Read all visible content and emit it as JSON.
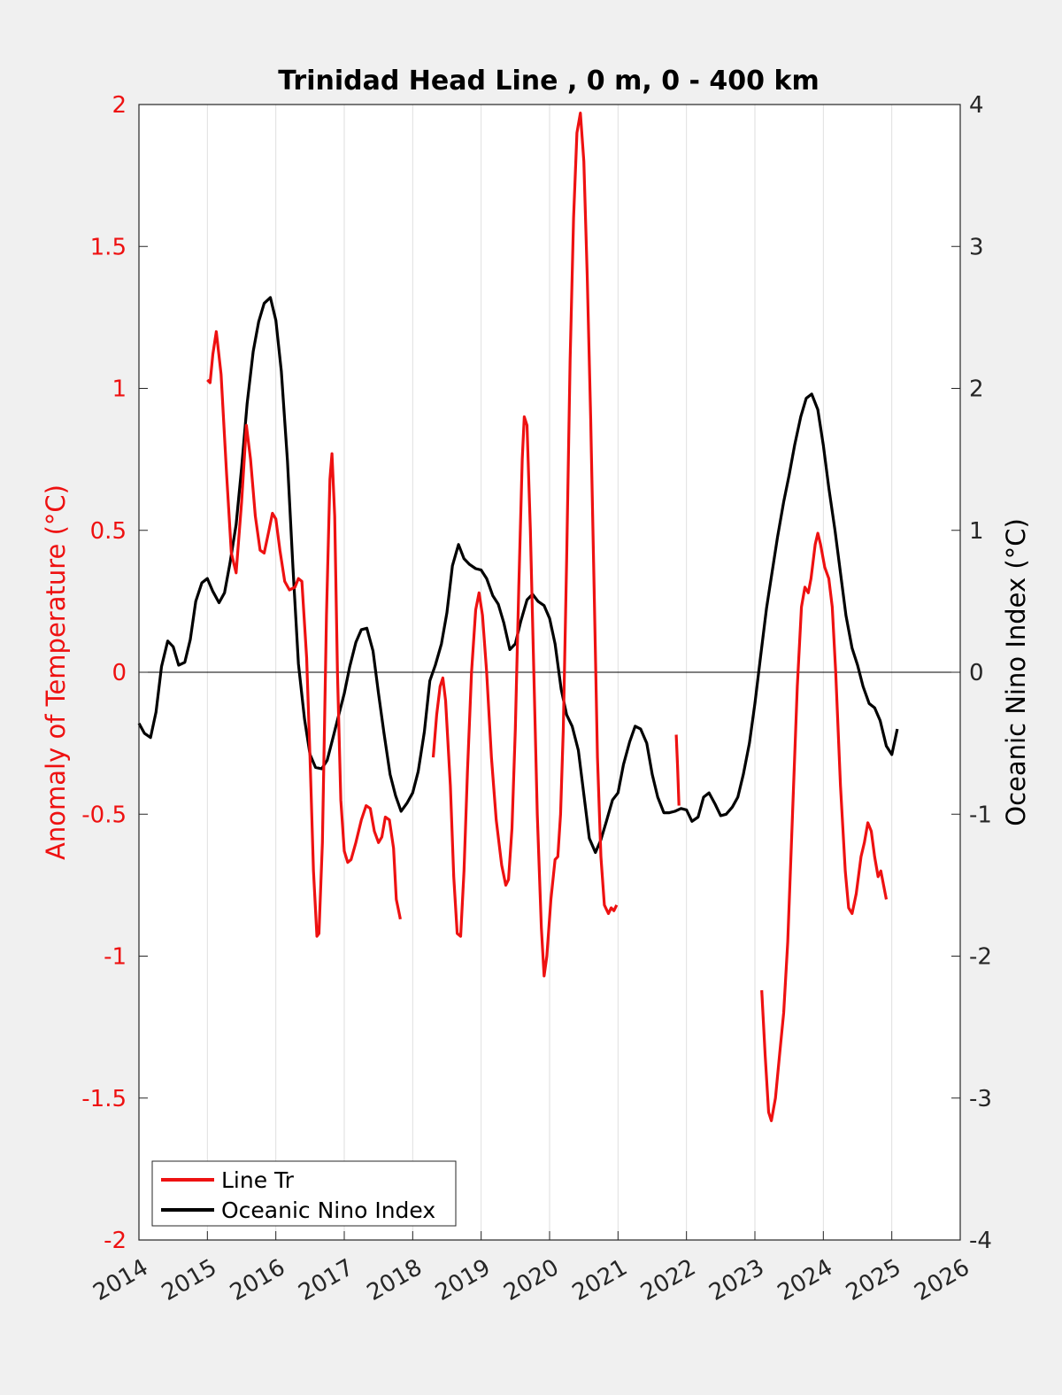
{
  "chart_data": {
    "type": "line",
    "title": "Trinidad Head Line , 0 m, 0 - 400 km",
    "xlabel": "",
    "ylabel_left": "Anomaly of Temperature (°C)",
    "ylabel_right": "Oceanic Nino Index (°C)",
    "xlim": [
      2014,
      2026
    ],
    "ylim_left": [
      -2,
      2
    ],
    "ylim_right": [
      -4,
      4
    ],
    "x_ticks": [
      "2014",
      "2015",
      "2016",
      "2017",
      "2018",
      "2019",
      "2020",
      "2021",
      "2022",
      "2023",
      "2024",
      "2025",
      "2026"
    ],
    "y_ticks_left": [
      "2",
      "1.5",
      "1",
      "0.5",
      "0",
      "-0.5",
      "-1",
      "-1.5",
      "-2"
    ],
    "y_ticks_right": [
      "4",
      "3",
      "2",
      "1",
      "0",
      "-1",
      "-2",
      "-3",
      "-4"
    ],
    "grid": "vertical",
    "legend_position": "bottom-left",
    "colors": {
      "left_axis": "#ee1111",
      "line_tr": "#ee1111",
      "oni": "#000000",
      "plot_bg": "#ffffff",
      "figure_bg": "#f0f0f0"
    },
    "series": [
      {
        "name": "Line Tr",
        "axis": "left",
        "segments": [
          [
            [
              2015.0,
              1.03
            ],
            [
              2015.04,
              1.02
            ],
            [
              2015.08,
              1.12
            ],
            [
              2015.13,
              1.2
            ],
            [
              2015.2,
              1.05
            ],
            [
              2015.28,
              0.7
            ],
            [
              2015.35,
              0.42
            ],
            [
              2015.42,
              0.35
            ],
            [
              2015.5,
              0.6
            ],
            [
              2015.57,
              0.87
            ],
            [
              2015.63,
              0.75
            ],
            [
              2015.7,
              0.55
            ],
            [
              2015.77,
              0.43
            ],
            [
              2015.83,
              0.42
            ],
            [
              2015.9,
              0.5
            ],
            [
              2015.95,
              0.56
            ],
            [
              2016.0,
              0.54
            ],
            [
              2016.06,
              0.43
            ],
            [
              2016.13,
              0.32
            ],
            [
              2016.2,
              0.29
            ],
            [
              2016.28,
              0.3
            ],
            [
              2016.33,
              0.33
            ],
            [
              2016.38,
              0.32
            ],
            [
              2016.45,
              0.05
            ],
            [
              2016.5,
              -0.3
            ],
            [
              2016.55,
              -0.7
            ],
            [
              2016.6,
              -0.93
            ],
            [
              2016.63,
              -0.92
            ],
            [
              2016.68,
              -0.6
            ],
            [
              2016.74,
              0.2
            ],
            [
              2016.79,
              0.68
            ],
            [
              2016.82,
              0.77
            ],
            [
              2016.86,
              0.55
            ],
            [
              2016.9,
              0.0
            ],
            [
              2016.95,
              -0.45
            ],
            [
              2017.0,
              -0.63
            ],
            [
              2017.05,
              -0.67
            ],
            [
              2017.1,
              -0.66
            ],
            [
              2017.17,
              -0.6
            ],
            [
              2017.25,
              -0.52
            ],
            [
              2017.32,
              -0.47
            ],
            [
              2017.38,
              -0.48
            ],
            [
              2017.44,
              -0.56
            ],
            [
              2017.5,
              -0.6
            ],
            [
              2017.55,
              -0.58
            ],
            [
              2017.6,
              -0.51
            ],
            [
              2017.66,
              -0.52
            ],
            [
              2017.72,
              -0.62
            ],
            [
              2017.76,
              -0.8
            ],
            [
              2017.82,
              -0.87
            ]
          ],
          [
            [
              2018.3,
              -0.3
            ],
            [
              2018.35,
              -0.15
            ],
            [
              2018.4,
              -0.05
            ],
            [
              2018.44,
              -0.02
            ],
            [
              2018.48,
              -0.1
            ],
            [
              2018.55,
              -0.4
            ],
            [
              2018.6,
              -0.72
            ],
            [
              2018.65,
              -0.92
            ],
            [
              2018.7,
              -0.93
            ],
            [
              2018.75,
              -0.7
            ],
            [
              2018.8,
              -0.35
            ],
            [
              2018.86,
              0.0
            ],
            [
              2018.92,
              0.22
            ],
            [
              2018.97,
              0.28
            ],
            [
              2019.02,
              0.2
            ],
            [
              2019.08,
              0.0
            ],
            [
              2019.15,
              -0.3
            ],
            [
              2019.22,
              -0.52
            ],
            [
              2019.3,
              -0.68
            ],
            [
              2019.36,
              -0.75
            ],
            [
              2019.4,
              -0.73
            ],
            [
              2019.45,
              -0.55
            ],
            [
              2019.5,
              -0.2
            ],
            [
              2019.55,
              0.3
            ],
            [
              2019.6,
              0.75
            ],
            [
              2019.63,
              0.9
            ],
            [
              2019.67,
              0.87
            ],
            [
              2019.72,
              0.5
            ],
            [
              2019.77,
              0.0
            ],
            [
              2019.82,
              -0.5
            ],
            [
              2019.88,
              -0.9
            ],
            [
              2019.92,
              -1.07
            ],
            [
              2019.96,
              -1.0
            ],
            [
              2020.02,
              -0.8
            ],
            [
              2020.08,
              -0.66
            ],
            [
              2020.12,
              -0.65
            ],
            [
              2020.16,
              -0.5
            ],
            [
              2020.2,
              -0.2
            ],
            [
              2020.25,
              0.4
            ],
            [
              2020.3,
              1.1
            ],
            [
              2020.35,
              1.6
            ],
            [
              2020.4,
              1.9
            ],
            [
              2020.45,
              1.97
            ],
            [
              2020.5,
              1.8
            ],
            [
              2020.55,
              1.4
            ],
            [
              2020.6,
              0.9
            ],
            [
              2020.65,
              0.3
            ],
            [
              2020.7,
              -0.3
            ],
            [
              2020.75,
              -0.65
            ],
            [
              2020.8,
              -0.82
            ],
            [
              2020.86,
              -0.85
            ],
            [
              2020.9,
              -0.83
            ],
            [
              2020.94,
              -0.84
            ],
            [
              2020.98,
              -0.82
            ]
          ],
          [
            [
              2021.85,
              -0.22
            ],
            [
              2021.87,
              -0.33
            ],
            [
              2021.89,
              -0.47
            ]
          ],
          [
            [
              2023.1,
              -1.12
            ],
            [
              2023.15,
              -1.35
            ],
            [
              2023.2,
              -1.55
            ],
            [
              2023.24,
              -1.58
            ],
            [
              2023.3,
              -1.5
            ],
            [
              2023.36,
              -1.35
            ],
            [
              2023.42,
              -1.2
            ],
            [
              2023.48,
              -0.95
            ],
            [
              2023.55,
              -0.5
            ],
            [
              2023.62,
              -0.05
            ],
            [
              2023.68,
              0.23
            ],
            [
              2023.73,
              0.3
            ],
            [
              2023.78,
              0.28
            ],
            [
              2023.82,
              0.33
            ],
            [
              2023.88,
              0.45
            ],
            [
              2023.92,
              0.49
            ],
            [
              2023.96,
              0.45
            ],
            [
              2024.02,
              0.37
            ],
            [
              2024.08,
              0.33
            ],
            [
              2024.13,
              0.23
            ],
            [
              2024.18,
              0.0
            ],
            [
              2024.25,
              -0.4
            ],
            [
              2024.32,
              -0.7
            ],
            [
              2024.37,
              -0.83
            ],
            [
              2024.42,
              -0.85
            ],
            [
              2024.48,
              -0.78
            ],
            [
              2024.55,
              -0.65
            ],
            [
              2024.6,
              -0.6
            ],
            [
              2024.65,
              -0.53
            ],
            [
              2024.7,
              -0.56
            ],
            [
              2024.75,
              -0.65
            ],
            [
              2024.8,
              -0.72
            ],
            [
              2024.84,
              -0.7
            ],
            [
              2024.88,
              -0.75
            ],
            [
              2024.92,
              -0.8
            ]
          ]
        ]
      },
      {
        "name": "Oceanic Nino Index",
        "axis": "right",
        "x": [
          2014.0,
          2014.08,
          2014.17,
          2014.25,
          2014.33,
          2014.42,
          2014.5,
          2014.58,
          2014.67,
          2014.75,
          2014.83,
          2014.92,
          2015.0,
          2015.08,
          2015.17,
          2015.25,
          2015.33,
          2015.42,
          2015.5,
          2015.58,
          2015.67,
          2015.75,
          2015.83,
          2015.92,
          2016.0,
          2016.08,
          2016.17,
          2016.25,
          2016.33,
          2016.42,
          2016.5,
          2016.58,
          2016.67,
          2016.75,
          2016.83,
          2016.92,
          2017.0,
          2017.08,
          2017.17,
          2017.25,
          2017.33,
          2017.42,
          2017.5,
          2017.58,
          2017.67,
          2017.75,
          2017.83,
          2017.92,
          2018.0,
          2018.08,
          2018.17,
          2018.25,
          2018.33,
          2018.42,
          2018.5,
          2018.58,
          2018.67,
          2018.75,
          2018.83,
          2018.92,
          2019.0,
          2019.08,
          2019.17,
          2019.25,
          2019.33,
          2019.42,
          2019.5,
          2019.58,
          2019.67,
          2019.75,
          2019.83,
          2019.92,
          2020.0,
          2020.08,
          2020.17,
          2020.25,
          2020.33,
          2020.42,
          2020.5,
          2020.58,
          2020.67,
          2020.75,
          2020.83,
          2020.92,
          2021.0,
          2021.08,
          2021.17,
          2021.25,
          2021.33,
          2021.42,
          2021.5,
          2021.58,
          2021.67,
          2021.75,
          2021.83,
          2021.92,
          2022.0,
          2022.08,
          2022.17,
          2022.25,
          2022.33,
          2022.42,
          2022.5,
          2022.58,
          2022.67,
          2022.75,
          2022.83,
          2022.92,
          2023.0,
          2023.08,
          2023.17,
          2023.25,
          2023.33,
          2023.42,
          2023.5,
          2023.58,
          2023.67,
          2023.75,
          2023.83,
          2023.92,
          2024.0,
          2024.08,
          2024.17,
          2024.25,
          2024.33,
          2024.42,
          2024.5,
          2024.58,
          2024.67,
          2024.75,
          2024.83,
          2024.92,
          2025.0,
          2025.08
        ],
        "values": [
          -0.36,
          -0.43,
          -0.46,
          -0.28,
          0.04,
          0.22,
          0.18,
          0.05,
          0.07,
          0.23,
          0.5,
          0.63,
          0.66,
          0.57,
          0.49,
          0.56,
          0.77,
          1.04,
          1.44,
          1.89,
          2.26,
          2.47,
          2.6,
          2.64,
          2.48,
          2.12,
          1.49,
          0.74,
          0.06,
          -0.33,
          -0.58,
          -0.67,
          -0.68,
          -0.62,
          -0.47,
          -0.3,
          -0.15,
          0.04,
          0.21,
          0.3,
          0.31,
          0.15,
          -0.15,
          -0.43,
          -0.72,
          -0.87,
          -0.98,
          -0.92,
          -0.85,
          -0.7,
          -0.42,
          -0.06,
          0.05,
          0.2,
          0.42,
          0.75,
          0.9,
          0.8,
          0.76,
          0.73,
          0.72,
          0.66,
          0.54,
          0.48,
          0.35,
          0.16,
          0.2,
          0.36,
          0.51,
          0.55,
          0.5,
          0.47,
          0.38,
          0.2,
          -0.12,
          -0.3,
          -0.38,
          -0.55,
          -0.86,
          -1.17,
          -1.27,
          -1.18,
          -1.05,
          -0.9,
          -0.85,
          -0.65,
          -0.49,
          -0.38,
          -0.4,
          -0.5,
          -0.72,
          -0.88,
          -0.99,
          -0.99,
          -0.98,
          -0.96,
          -0.97,
          -1.05,
          -1.02,
          -0.88,
          -0.85,
          -0.93,
          -1.01,
          -1.0,
          -0.95,
          -0.88,
          -0.72,
          -0.5,
          -0.22,
          0.1,
          0.45,
          0.7,
          0.95,
          1.2,
          1.39,
          1.6,
          1.8,
          1.93,
          1.96,
          1.85,
          1.6,
          1.3,
          1.0,
          0.7,
          0.4,
          0.17,
          0.05,
          -0.1,
          -0.22,
          -0.25,
          -0.34,
          -0.52,
          -0.58,
          -0.4
        ]
      }
    ]
  }
}
